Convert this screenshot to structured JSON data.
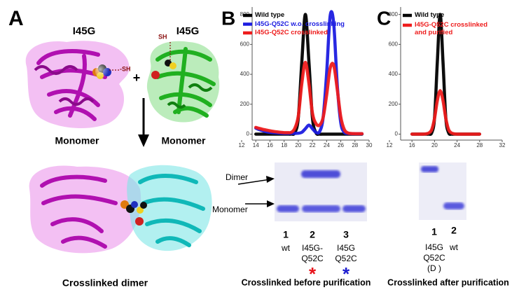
{
  "panel_a": {
    "letter": "A",
    "left_name": "I45G",
    "right_name": "I45G",
    "left_group": "-SH",
    "right_group": "SH",
    "plus": "+",
    "left_caption": "Monomer",
    "right_caption": "Monomer",
    "dimer_caption": "Crosslinked dimer"
  },
  "panel_b": {
    "letter": "B",
    "gel_dimer": "Dimer",
    "gel_monomer": "Monomer",
    "lanes": [
      {
        "number": "1",
        "label": [
          "wt"
        ]
      },
      {
        "number": "2",
        "label": [
          "I45G-",
          "Q52C"
        ],
        "star": "*",
        "star_color": "#e8141c"
      },
      {
        "number": "3",
        "label": [
          "I45G",
          "Q52C"
        ],
        "star": "*",
        "star_color": "#2020d0"
      }
    ],
    "caption": "Crosslinked before purification"
  },
  "panel_c": {
    "letter": "C",
    "lanes": [
      {
        "number": "1",
        "label": [
          "I45G",
          "Q52C",
          "(D )"
        ]
      },
      {
        "number": "2",
        "label": [
          "wt"
        ]
      }
    ],
    "caption": "Crosslinked after purification"
  },
  "chart_data": [
    {
      "type": "line",
      "xlim": [
        12,
        30
      ],
      "xticks": [
        12,
        14,
        16,
        18,
        20,
        22,
        24,
        26,
        28,
        30
      ],
      "ylim": [
        -40,
        850
      ],
      "yticks": [
        0,
        200,
        400,
        600,
        800
      ],
      "x": [
        14,
        14.5,
        15,
        15.5,
        16,
        16.5,
        17,
        17.5,
        18,
        18.5,
        19,
        19.5,
        20,
        20.5,
        21,
        21.5,
        22,
        22.5,
        23,
        23.5,
        24,
        24.5,
        25,
        25.5,
        26,
        26.5,
        27,
        27.5,
        28,
        28.5,
        29
      ],
      "series": [
        {
          "name": "Wild type",
          "color": "#000000",
          "values": [
            0,
            0,
            0,
            0,
            0,
            0,
            0,
            0,
            0,
            0,
            0,
            9,
            108,
            485,
            800,
            485,
            108,
            9,
            0,
            0,
            0,
            0,
            0,
            0,
            0,
            0,
            0,
            0,
            0,
            0,
            0
          ]
        },
        {
          "name": "I45G-Q52C w.o. crosslinking",
          "color": "#1c1ce0",
          "values": [
            40,
            30,
            22,
            16,
            12,
            10,
            8,
            6,
            5,
            5,
            5,
            5,
            6,
            12,
            36,
            60,
            36,
            12,
            16,
            108,
            405,
            790,
            740,
            329,
            77,
            12,
            5,
            3,
            2,
            2,
            2
          ]
        },
        {
          "name": "I45G-Q52C crosslinked",
          "color": "#ee1c1c",
          "values": [
            45,
            38,
            32,
            27,
            22,
            18,
            15,
            12,
            10,
            10,
            12,
            38,
            120,
            339,
            480,
            339,
            140,
            70,
            60,
            110,
            260,
            440,
            460,
            300,
            115,
            30,
            8,
            4,
            3,
            3,
            3
          ]
        }
      ]
    },
    {
      "type": "line",
      "xlim": [
        12,
        32
      ],
      "xticks": [
        12,
        16,
        20,
        24,
        28,
        32
      ],
      "ylim": [
        -40,
        850
      ],
      "yticks": [
        0,
        200,
        400,
        600,
        800
      ],
      "x": [
        16,
        16.5,
        17,
        17.5,
        18,
        18.5,
        19,
        19.5,
        20,
        20.5,
        21,
        21.5,
        22,
        22.5,
        23,
        23.5,
        24,
        24.5,
        25,
        25.5,
        26,
        26.5,
        27,
        27.5,
        28
      ],
      "series": [
        {
          "name": "Wild type",
          "color": "#000000",
          "values": [
            0,
            0,
            0,
            0,
            0,
            0,
            0,
            9,
            108,
            485,
            800,
            485,
            108,
            9,
            0,
            0,
            0,
            0,
            0,
            0,
            0,
            0,
            0,
            0,
            0
          ]
        },
        {
          "name": "I45G-Q52C crosslinked and purified",
          "color": "#ee1c1c",
          "values": [
            0,
            0,
            0,
            0,
            0,
            2,
            8,
            30,
            105,
            225,
            290,
            225,
            105,
            30,
            8,
            2,
            0,
            0,
            0,
            0,
            0,
            0,
            0,
            0,
            0
          ]
        }
      ]
    }
  ]
}
